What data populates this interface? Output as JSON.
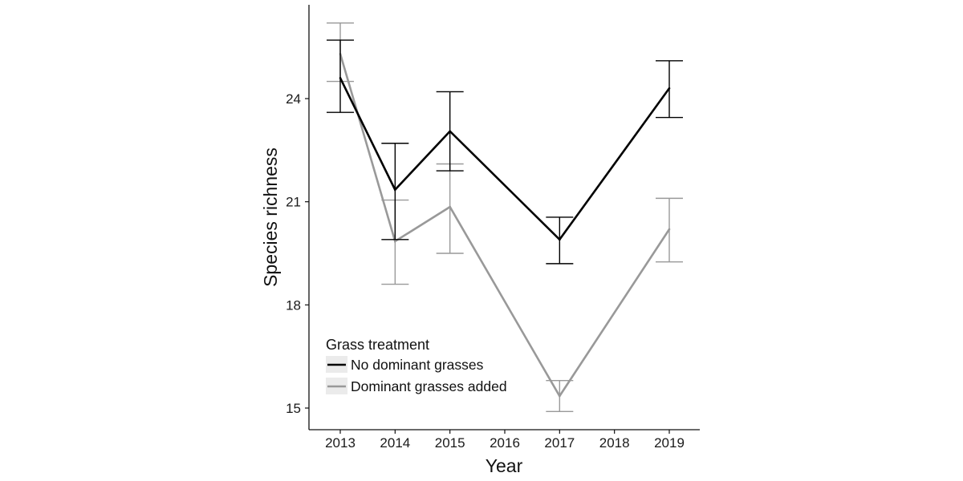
{
  "chart_data": {
    "type": "line",
    "title": "",
    "xlabel": "Year",
    "ylabel": "Species richness",
    "x": [
      2013,
      2014,
      2015,
      2016,
      2017,
      2018,
      2019
    ],
    "x_tick_labels": [
      "2013",
      "2014",
      "2015",
      "2016",
      "2017",
      "2018",
      "2019"
    ],
    "xlim": [
      2012.6,
      2019.6
    ],
    "ylim": [
      14.3,
      26.7
    ],
    "y_ticks": [
      15,
      18,
      21,
      24
    ],
    "y_tick_labels": [
      "15",
      "18",
      "21",
      "24"
    ],
    "grid": false,
    "legend": {
      "title": "Grass treatment",
      "placement": "bottom-left",
      "entries": [
        "No dominant grasses",
        "Dominant grasses added"
      ]
    },
    "series": [
      {
        "name": "No dominant grasses",
        "color": "#000000",
        "points": [
          {
            "x": 2013,
            "y": 24.6,
            "lower": 23.6,
            "upper": 25.7
          },
          {
            "x": 2014,
            "y": 21.35,
            "lower": 19.9,
            "upper": 22.7
          },
          {
            "x": 2015,
            "y": 23.05,
            "lower": 21.9,
            "upper": 24.2
          },
          {
            "x": 2017,
            "y": 19.9,
            "lower": 19.2,
            "upper": 20.55
          }
        ],
        "points_tail": [
          {
            "x": 2019,
            "y": 24.3,
            "lower": 23.45,
            "upper": 25.1
          }
        ]
      },
      {
        "name": "Dominant grasses added",
        "color": "#999999",
        "points": [
          {
            "x": 2013,
            "y": 25.3,
            "lower": 24.5,
            "upper": 26.2
          },
          {
            "x": 2014,
            "y": 19.85,
            "lower": 18.6,
            "upper": 21.05
          },
          {
            "x": 2015,
            "y": 20.85,
            "lower": 19.5,
            "upper": 22.1
          },
          {
            "x": 2017,
            "y": 15.35,
            "lower": 14.9,
            "upper": 15.8
          },
          {
            "x": 2019,
            "y": 20.2,
            "lower": 19.25,
            "upper": 21.1
          }
        ]
      }
    ]
  }
}
